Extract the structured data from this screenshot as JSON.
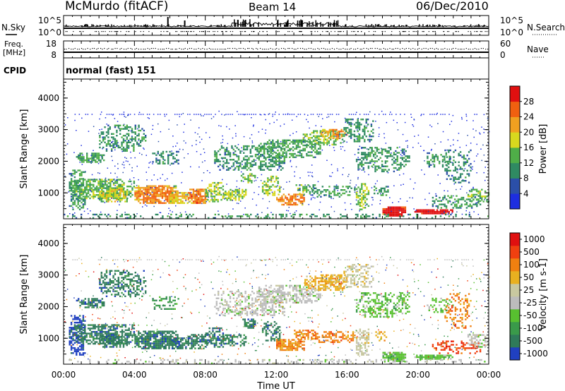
{
  "header": {
    "station": "McMurdo (fitACF)",
    "beam": "Beam 14",
    "date": "06/Dec/2010"
  },
  "noise_panel": {
    "left_label": "N.Sky",
    "left_ticks": [
      "10^5",
      "10^0"
    ],
    "right_ticks": [
      "10^5",
      "10^0"
    ],
    "right_label": "N.Search"
  },
  "freq_panel": {
    "left_label_1": "Freq.",
    "left_label_2": "[MHz]",
    "left_ticks": [
      "18",
      "8"
    ],
    "right_ticks": [
      "60",
      "0"
    ],
    "right_label": "Nave"
  },
  "cpid": {
    "label": "CPID",
    "value": "normal (fast) 151"
  },
  "chart_data": [
    {
      "type": "heatmap",
      "name": "power",
      "ylabel": "Slant Range [km]",
      "ylim": [
        180,
        4600
      ],
      "yticks": [
        "1000",
        "2000",
        "3000",
        "4000"
      ],
      "xlim": [
        0,
        24
      ],
      "colorbar": {
        "label": "Power [dB]",
        "tick_labels": [
          "4",
          "8",
          "12",
          "16",
          "20",
          "24",
          "28"
        ],
        "levels": [
          0,
          4,
          8,
          12,
          16,
          20,
          24,
          28,
          32
        ],
        "colors": [
          "#1d2ee0",
          "#2b4fa8",
          "#2f8a62",
          "#4fae48",
          "#d8d81e",
          "#f0a020",
          "#f06010",
          "#e01010"
        ]
      }
    },
    {
      "type": "heatmap",
      "name": "velocity",
      "ylabel": "Slant Range [km]",
      "ylim": [
        180,
        4600
      ],
      "yticks": [
        "1000",
        "2000",
        "3000",
        "4000"
      ],
      "xlabel": "Time UT",
      "xticks": [
        "00:00",
        "04:00",
        "08:00",
        "12:00",
        "16:00",
        "20:00",
        "00:00"
      ],
      "xlim": [
        0,
        24
      ],
      "colorbar": {
        "label": "Velocity [m s-1]",
        "tick_labels": [
          "1000",
          "500",
          "100",
          "50",
          "25",
          "-25",
          "-50",
          "-100",
          "-500",
          "-1000"
        ],
        "colors": [
          "#2040c0",
          "#2f7a5a",
          "#3a9a4a",
          "#58c030",
          "#bcbcbc",
          "#c8c8a0",
          "#e8b020",
          "#f08010",
          "#f04010",
          "#e01010"
        ]
      }
    }
  ]
}
